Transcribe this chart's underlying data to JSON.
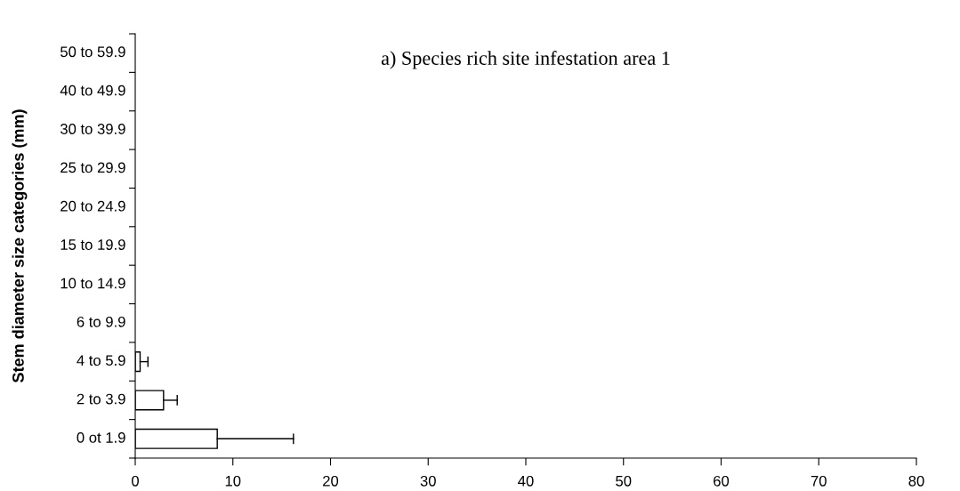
{
  "chart_data": {
    "type": "bar",
    "orientation": "horizontal",
    "title": "a) Species rich site infestation area 1",
    "ylabel": "Stem diameter size categories (mm)",
    "categories": [
      "50 to 59.9",
      "40 to 49.9",
      "30 to 39.9",
      "25 to 29.9",
      "20 to 24.9",
      "15 to 19.9",
      "10 to 14.9",
      "6 to 9.9",
      "4 to 5.9",
      "2 to 3.9",
      "0 ot 1.9"
    ],
    "values": [
      0,
      0,
      0,
      0,
      0,
      0,
      0,
      0,
      0.5,
      2.9,
      8.4
    ],
    "errors": [
      null,
      null,
      null,
      null,
      null,
      null,
      null,
      null,
      [
        0.5,
        1.3
      ],
      [
        2.9,
        4.3
      ],
      [
        8.4,
        16.2
      ]
    ],
    "color": "#ffffff",
    "xlim": [
      0,
      80
    ],
    "xticks": [
      0,
      10,
      20,
      30,
      40,
      50,
      60,
      70,
      80
    ],
    "grid": false,
    "legend": false
  }
}
